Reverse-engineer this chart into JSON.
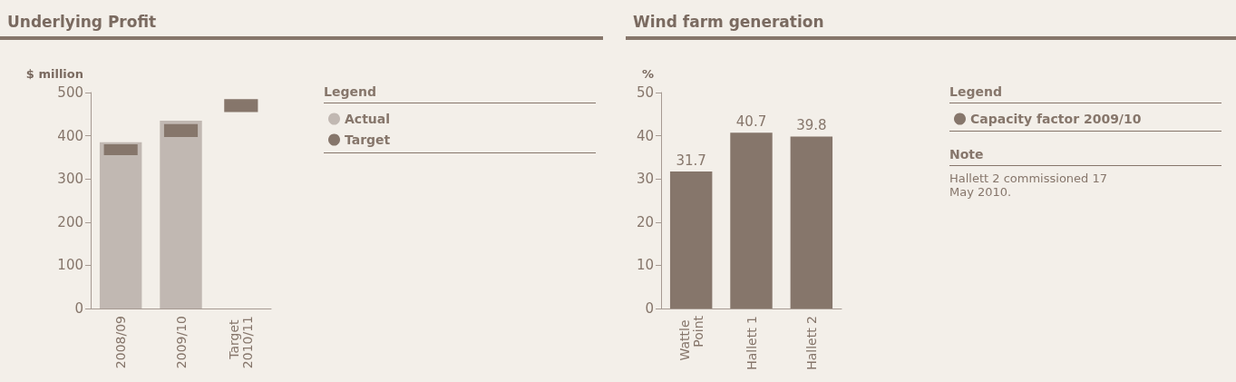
{
  "chart_data": [
    {
      "type": "bar",
      "title": "Underlying Profit",
      "ylabel": "$ million",
      "legend_title": "Legend",
      "legend": "right",
      "categories": [
        "2008/09",
        "2009/10",
        "Target 2010/11"
      ],
      "series": [
        {
          "name": "Actual",
          "color": "#c1b8b2",
          "values": [
            385,
            435,
            null
          ]
        },
        {
          "name": "Target",
          "color": "#86766b",
          "base": [
            355,
            397,
            455
          ],
          "values": [
            25,
            30,
            30
          ]
        }
      ],
      "ylim": [
        0,
        500
      ],
      "yticks": [
        0,
        100,
        200,
        300,
        400,
        500
      ],
      "grid": false
    },
    {
      "type": "bar",
      "title": "Wind farm generation",
      "ylabel": "%",
      "legend_title": "Legend",
      "legend": "right",
      "categories": [
        "Wattle Point",
        "Hallett 1",
        "Hallett 2"
      ],
      "series": [
        {
          "name": "Capacity factor 2009/10",
          "color": "#86766b",
          "values": [
            31.7,
            40.7,
            39.8
          ]
        }
      ],
      "ylim": [
        0,
        50
      ],
      "yticks": [
        0,
        10,
        20,
        30,
        40,
        50
      ],
      "grid": false,
      "data_labels": true,
      "annotations": [
        "Note",
        "Hallett 2 commissioned 17 May 2010."
      ]
    }
  ]
}
